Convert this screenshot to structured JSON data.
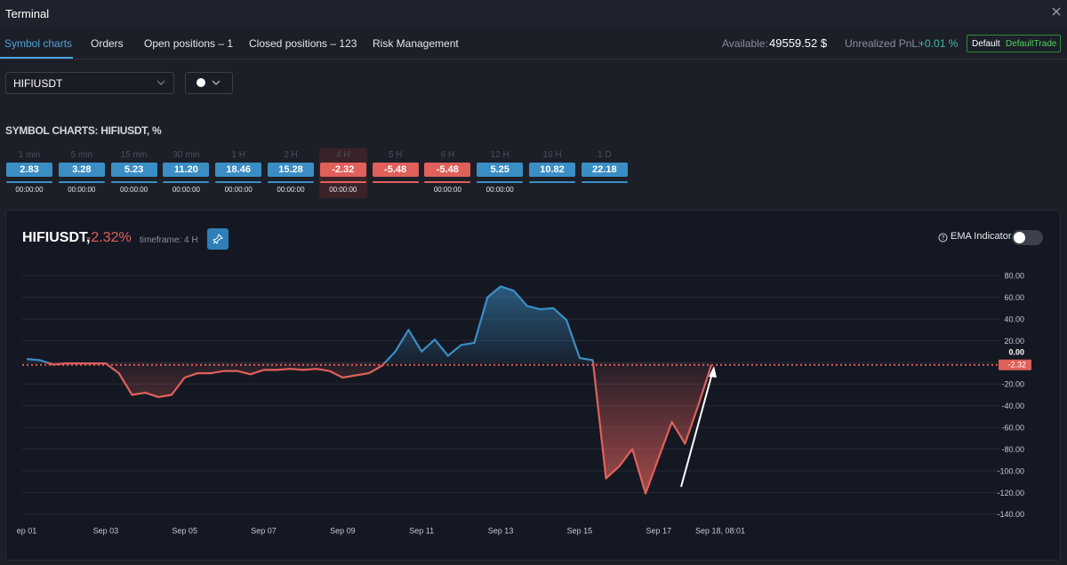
{
  "window": {
    "title": "Terminal"
  },
  "tabs": [
    "Symbol charts",
    "Orders",
    "Open positions – 1",
    "Closed positions – 123",
    "Risk Management"
  ],
  "active_tab": "Symbol charts",
  "account": {
    "available_label": "Available:",
    "available": "49559.52 $",
    "pnl_label": "Unrealized PnL:",
    "pnl": "+0.01 %",
    "mode": "Default",
    "profile": "DefaultTrade"
  },
  "symbol_select": "HIFIUSDT",
  "section_title": "SYMBOL CHARTS: HIFIUSDT, %",
  "selected_timeframe": "4 H",
  "timeframes": [
    {
      "label": "1 min",
      "change": "2.83",
      "time": "00:00:00"
    },
    {
      "label": "5 min",
      "change": "3.28",
      "time": "00:00:00"
    },
    {
      "label": "15 min",
      "change": "5.23",
      "time": "00:00:00"
    },
    {
      "label": "30 min",
      "change": "11.20",
      "time": "00:00:00"
    },
    {
      "label": "1 H",
      "change": "18.46",
      "time": "00:00:00"
    },
    {
      "label": "2 H",
      "change": "15.28",
      "time": "00:00:00"
    },
    {
      "label": "4 H",
      "change": "-2.32",
      "time": "00:00:00"
    },
    {
      "label": "5 H",
      "change": "-5.48"
    },
    {
      "label": "6 H",
      "change": "-5.48",
      "time": "00:00:00"
    },
    {
      "label": "12 H",
      "change": "5.25",
      "time": "00:00:00"
    },
    {
      "label": "16 H",
      "change": "10.82"
    },
    {
      "label": "1 D",
      "change": "22.18"
    }
  ],
  "chart_header": {
    "change": "-2.32%",
    "timeframe": "timeframe: 4 H",
    "ema": "EMA Indicator"
  },
  "chart_data": {
    "type": "line",
    "title": "HIFIUSDT,",
    "categories": [
      "ep 01",
      null,
      null,
      null,
      null,
      null,
      "Sep 03",
      null,
      null,
      null,
      null,
      null,
      "Sep 05",
      null,
      null,
      null,
      null,
      null,
      "Sep 07",
      null,
      null,
      null,
      null,
      null,
      "Sep 09",
      null,
      null,
      null,
      null,
      null,
      "Sep 11",
      null,
      null,
      null,
      null,
      null,
      "Sep 13",
      null,
      null,
      null,
      null,
      null,
      "Sep 15",
      null,
      null,
      null,
      null,
      null,
      "Sep 17",
      null,
      null,
      null,
      "Sep 18, 08:01"
    ],
    "values": [
      3,
      2,
      -2,
      -1,
      -1,
      -1,
      -1,
      -10,
      -30,
      -28,
      -32,
      -30,
      -14,
      -10,
      -10,
      -8,
      -8,
      -11,
      -7,
      -7,
      -6,
      -7,
      -6,
      -8,
      -14,
      -12,
      -10,
      -3,
      10,
      30,
      10,
      21,
      6,
      16,
      18,
      60,
      70,
      66,
      52,
      49,
      50,
      39,
      4,
      2,
      -107,
      -96,
      -80,
      -121,
      -88,
      -55,
      -75,
      -40,
      -2.32
    ],
    "color": "#3b8ec4",
    "negative_color": "#e0605a",
    "ylim": [
      -150,
      90
    ],
    "yticks": [
      {
        "value": 80,
        "label": "80.00"
      },
      {
        "value": 60,
        "label": "60.00"
      },
      {
        "value": 40,
        "label": "40.00"
      },
      {
        "value": 20,
        "label": "20.00"
      },
      {
        "value": 0,
        "label": "0.00"
      },
      {
        "value": -20,
        "label": "-20.00"
      },
      {
        "value": -40,
        "label": "-40.00"
      },
      {
        "value": -60,
        "label": "-60.00"
      },
      {
        "value": -80,
        "label": "-80.00"
      },
      {
        "value": -100,
        "label": "-100.00"
      },
      {
        "value": -120,
        "label": "-120.00"
      },
      {
        "value": -140,
        "label": "-140.00"
      }
    ],
    "grid": true
  }
}
